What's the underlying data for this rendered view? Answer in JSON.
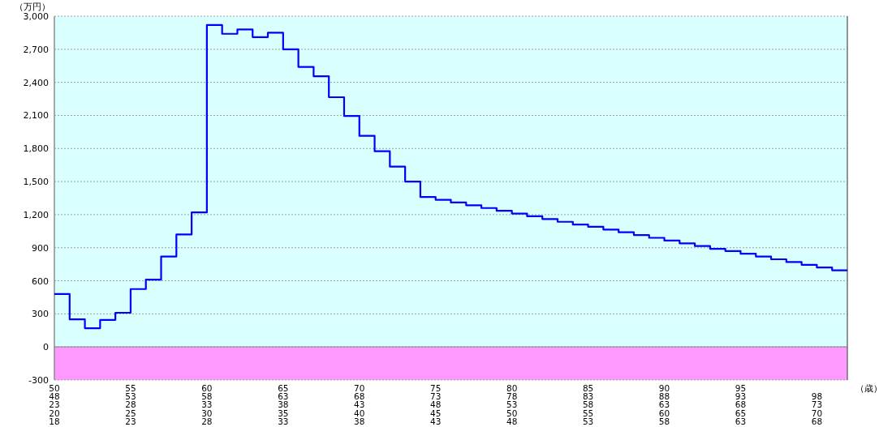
{
  "chart_data": {
    "type": "step",
    "ylabel": "（万円）",
    "xlabel": "（歳）",
    "categories": [
      "50\n48\n23\n20\n18",
      null,
      null,
      null,
      null,
      "55\n53\n28\n25\n23",
      null,
      null,
      null,
      null,
      "60\n58\n33\n30\n28",
      null,
      null,
      null,
      null,
      "65\n63\n38\n35\n33",
      null,
      null,
      null,
      null,
      "70\n68\n43\n40\n38",
      null,
      null,
      null,
      null,
      "75\n73\n48\n45\n43",
      null,
      null,
      null,
      null,
      "80\n78\n53\n50\n48",
      null,
      null,
      null,
      null,
      "85\n83\n58\n55\n53",
      null,
      null,
      null,
      null,
      "90\n88\n63\n60\n58",
      null,
      null,
      null,
      null,
      "95\n93\n68\n65\n63",
      null,
      null,
      null,
      null,
      "\n98\n73\n70\n68",
      null,
      null
    ],
    "values": [
      480,
      250,
      170,
      245,
      310,
      525,
      610,
      820,
      1020,
      1220,
      2920,
      2840,
      2880,
      2810,
      2850,
      2700,
      2540,
      2455,
      2265,
      2095,
      1915,
      1775,
      1635,
      1500,
      1360,
      1335,
      1310,
      1285,
      1260,
      1235,
      1210,
      1185,
      1160,
      1135,
      1110,
      1090,
      1065,
      1040,
      1015,
      990,
      965,
      940,
      915,
      890,
      870,
      845,
      820,
      795,
      770,
      745,
      720,
      695,
      695
    ],
    "color": "#0000ff",
    "line_style": "solid",
    "ylim": [
      -300,
      3000
    ],
    "yticks": [
      -300,
      0,
      300,
      600,
      900,
      {
        "value": 1200,
        "label": "1,200"
      },
      {
        "value": 1500,
        "label": "1,500"
      },
      {
        "value": 1800,
        "label": "1,800"
      },
      {
        "value": 2100,
        "label": "2,100"
      },
      {
        "value": 2400,
        "label": "2,400"
      },
      {
        "value": 2700,
        "label": "2,700"
      },
      {
        "value": 3000,
        "label": "3,000"
      }
    ],
    "bands": [
      {
        "axis": "y",
        "from": 0,
        "to": 3000,
        "color": "#d9ffff"
      },
      {
        "axis": "y",
        "from": -300,
        "to": 0,
        "color": "#ff99ff"
      }
    ],
    "ref_lines": [
      {
        "axis": "y",
        "value": 0,
        "color": "#909090"
      }
    ],
    "grid": "y"
  }
}
